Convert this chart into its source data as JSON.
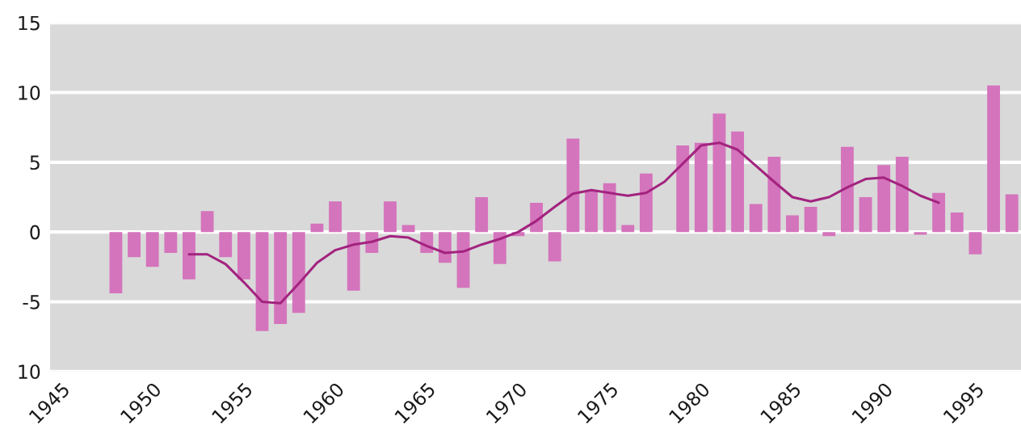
{
  "chart_data": {
    "type": "bar",
    "x": [
      1948,
      1949,
      1950,
      1951,
      1952,
      1953,
      1954,
      1955,
      1956,
      1957,
      1958,
      1959,
      1960,
      1961,
      1962,
      1963,
      1964,
      1965,
      1966,
      1967,
      1968,
      1969,
      1970,
      1971,
      1972,
      1973,
      1974,
      1975,
      1976,
      1977,
      1978,
      1979,
      1980,
      1981,
      1982,
      1983,
      1984,
      1985,
      1986,
      1987,
      1988,
      1989,
      1990,
      1991,
      1992,
      1993,
      1994,
      1995,
      1996,
      1997
    ],
    "series": [
      {
        "color": "#d474bc",
        "values": [
          -4.4,
          -1.8,
          -2.5,
          -1.5,
          -3.4,
          1.5,
          -1.8,
          -3.4,
          -7.1,
          -6.6,
          -5.8,
          0.6,
          2.2,
          -4.2,
          -1.5,
          2.2,
          0.5,
          -1.5,
          -2.2,
          -4.0,
          2.5,
          -2.3,
          -0.3,
          2.1,
          -2.1,
          6.7,
          2.9,
          3.5,
          0.5,
          4.2,
          0,
          6.2,
          6.4,
          8.5,
          7.2,
          2.0,
          5.4,
          1.2,
          1.8,
          -0.3,
          6.1,
          2.5,
          4.8,
          5.4,
          -0.2,
          2.8,
          1.4,
          -1.6,
          10.5,
          2.7
        ]
      },
      {
        "type": "line",
        "color": "#a3237f",
        "x": [
          1952,
          1953,
          1954,
          1955,
          1956,
          1957,
          1958,
          1959,
          1960,
          1961,
          1962,
          1963,
          1964,
          1965,
          1966,
          1967,
          1968,
          1969,
          1970,
          1971,
          1972,
          1973,
          1974,
          1975,
          1976,
          1977,
          1978,
          1979,
          1980,
          1981,
          1982,
          1983,
          1984,
          1985,
          1986,
          1987,
          1988,
          1989,
          1990,
          1991,
          1992,
          1993
        ],
        "values": [
          -1.6,
          -1.6,
          -2.3,
          -3.6,
          -5.0,
          -5.1,
          -3.7,
          -2.2,
          -1.3,
          -0.9,
          -0.7,
          -0.3,
          -0.4,
          -1.0,
          -1.5,
          -1.4,
          -0.9,
          -0.5,
          0.0,
          0.8,
          1.8,
          2.75,
          3.0,
          2.8,
          2.6,
          2.8,
          3.6,
          4.9,
          6.2,
          6.4,
          5.9,
          4.75,
          3.6,
          2.5,
          2.2,
          2.5,
          3.2,
          3.8,
          3.9,
          3.3,
          2.6,
          2.1
        ]
      }
    ],
    "xlim": [
      1944.4,
      1997.5
    ],
    "xticks": [
      1945,
      1950,
      1955,
      1960,
      1965,
      1970,
      1975,
      1980,
      1985,
      1990,
      1995
    ],
    "ylim": [
      -10,
      15
    ],
    "yticks": [
      {
        "value": -10,
        "label": "10"
      },
      {
        "value": -5,
        "label": "-5"
      },
      0,
      5,
      10,
      15
    ],
    "grid": "y",
    "marker": "none",
    "line_style": "solid"
  }
}
